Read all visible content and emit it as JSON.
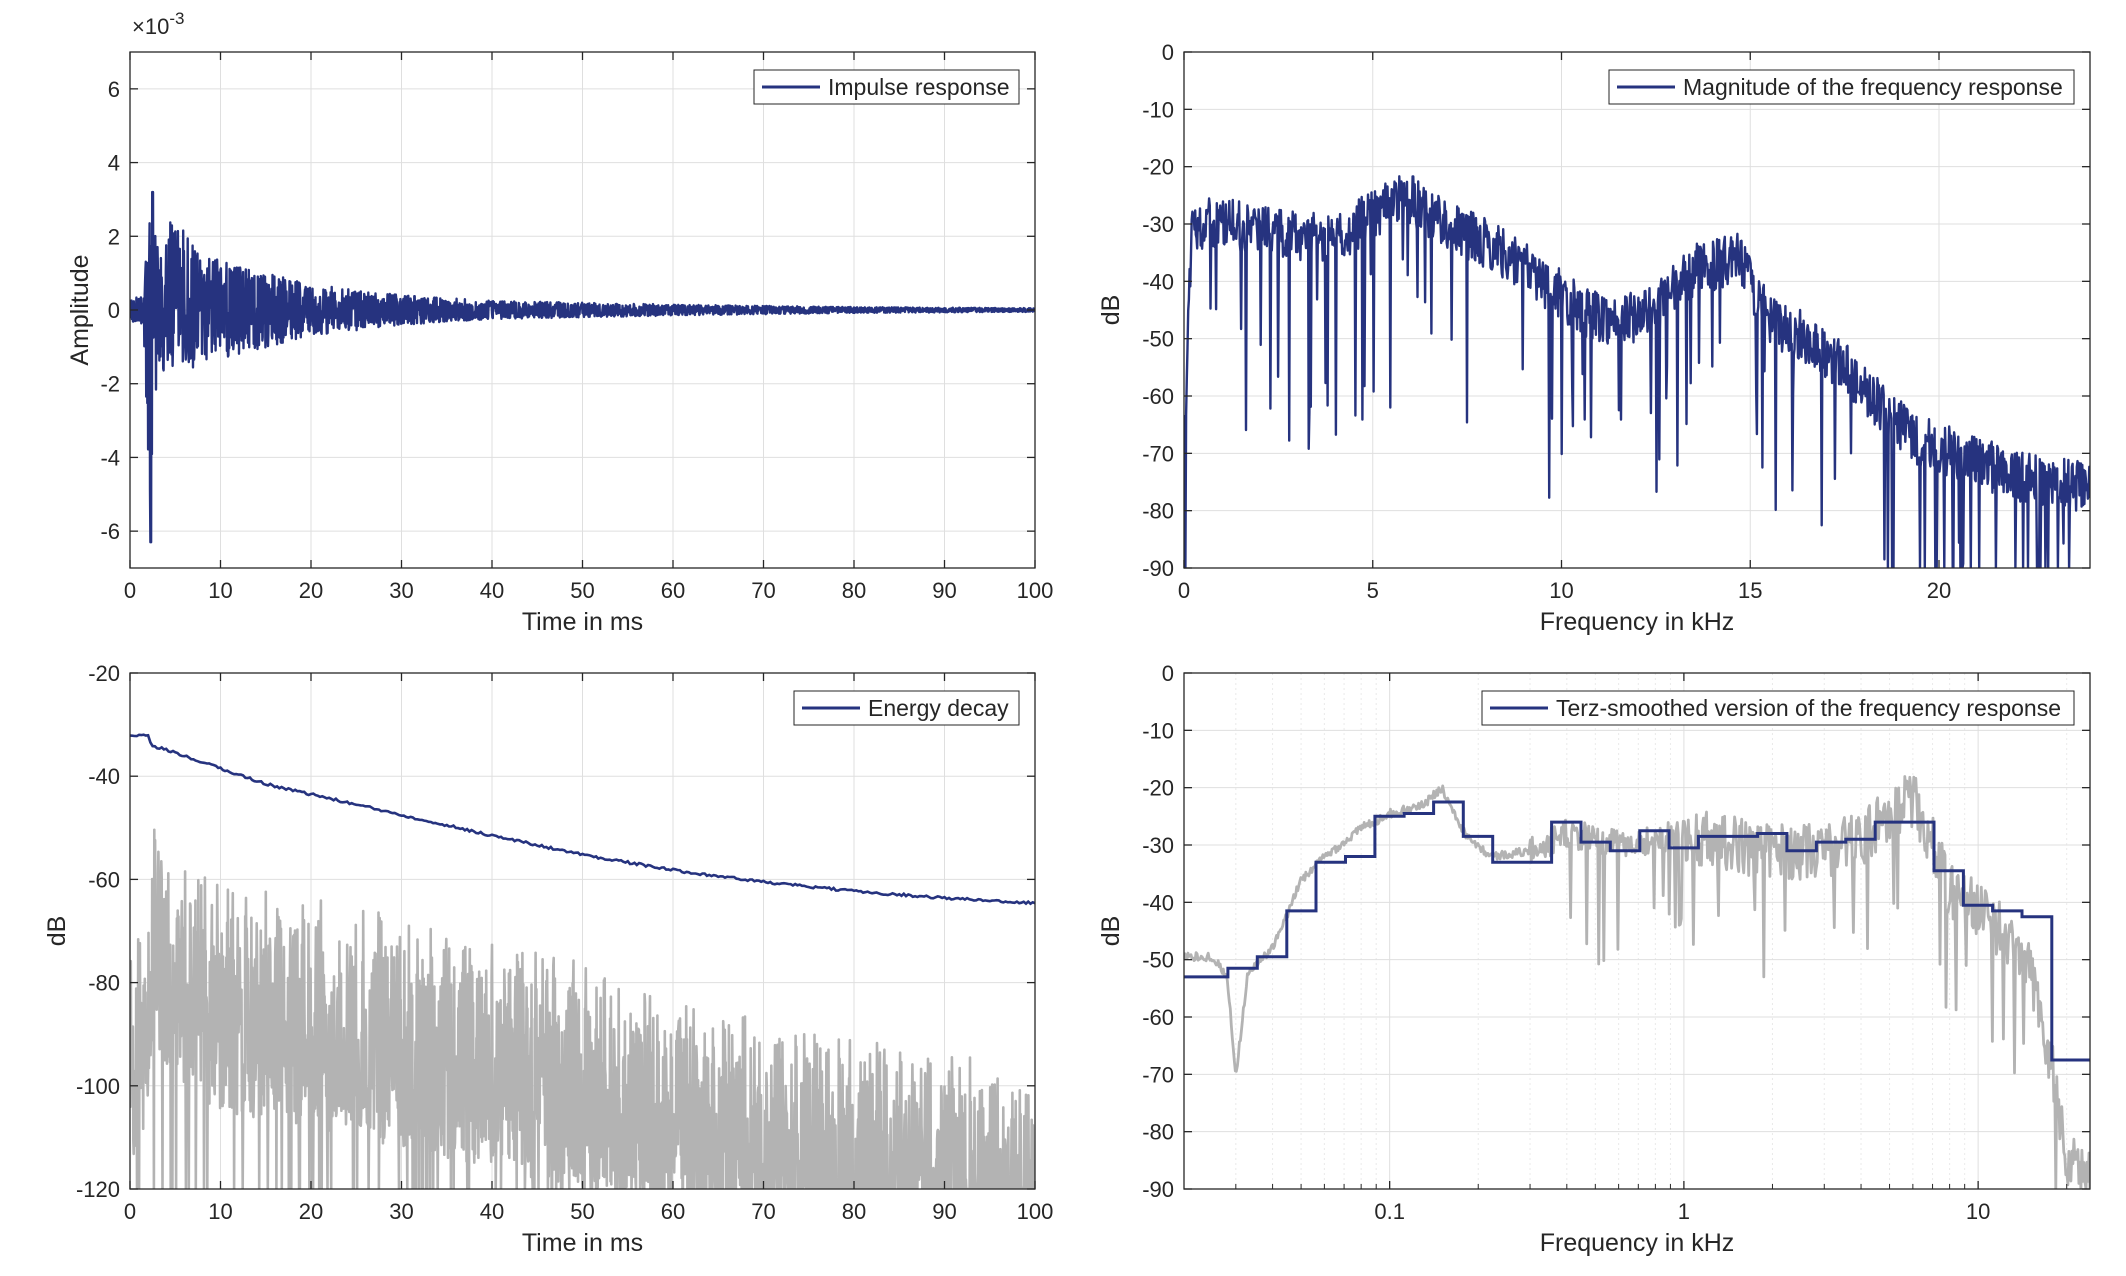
{
  "colors": {
    "series": "#26337F",
    "gray": "#B3B3B3",
    "axis": "#262626",
    "grid": "#DFDFDF",
    "minorgrid": "#EAEAEA"
  },
  "chart_data": [
    {
      "id": "impulse",
      "type": "line",
      "xlabel": "Time in ms",
      "ylabel": "Amplitude",
      "xlim": [
        0,
        100
      ],
      "ylim": [
        -7,
        7
      ],
      "xticks": [
        0,
        10,
        20,
        30,
        40,
        50,
        60,
        70,
        80,
        90,
        100
      ],
      "yticks": [
        -6,
        -4,
        -2,
        0,
        2,
        4,
        6
      ],
      "exponent_label": "×10",
      "exponent_value": "-3",
      "grid": true,
      "legend": {
        "position": "top-right",
        "entries": [
          "Impulse response"
        ]
      },
      "series": [
        {
          "name": "Impulse response",
          "color": "series",
          "envelope_t": [
            0,
            1.5,
            2.2,
            2.6,
            3.5,
            5,
            8,
            12,
            20,
            30,
            40,
            60,
            80,
            100
          ],
          "envelope_max": [
            0.3,
            0.4,
            3.2,
            2.2,
            2.0,
            2.8,
            1.5,
            1.2,
            0.7,
            0.4,
            0.25,
            0.15,
            0.08,
            0.05
          ],
          "envelope_min": [
            -0.3,
            -0.4,
            -6.3,
            -2.5,
            -1.8,
            -1.5,
            -1.6,
            -1.2,
            -0.7,
            -0.4,
            -0.25,
            -0.15,
            -0.08,
            -0.05
          ]
        }
      ]
    },
    {
      "id": "magnitude",
      "type": "line",
      "xlabel": "Frequency in kHz",
      "ylabel": "dB",
      "xlim": [
        0,
        24
      ],
      "ylim": [
        -90,
        0
      ],
      "xticks": [
        0,
        5,
        10,
        15,
        20
      ],
      "yticks": [
        0,
        -10,
        -20,
        -30,
        -40,
        -50,
        -60,
        -70,
        -80,
        -90
      ],
      "grid": true,
      "legend": {
        "position": "top-right",
        "entries": [
          "Magnitude of the frequency response"
        ]
      },
      "series": [
        {
          "name": "Magnitude of the frequency response",
          "color": "series",
          "trend_f": [
            0,
            0.2,
            1,
            2,
            3,
            4,
            5,
            5.8,
            6.5,
            7.5,
            8.5,
            9.5,
            10.5,
            11.5,
            12.5,
            13.5,
            14.7,
            15.5,
            16.5,
            17.5,
            18.5,
            19.5,
            20.5,
            22,
            24
          ],
          "trend_db": [
            -70,
            -30,
            -30,
            -31,
            -32,
            -33,
            -28,
            -25,
            -28,
            -32,
            -35,
            -40,
            -45,
            -47,
            -45,
            -38,
            -36,
            -47,
            -50,
            -55,
            -62,
            -68,
            -70,
            -74,
            -76
          ]
        }
      ]
    },
    {
      "id": "decay",
      "type": "line",
      "xlabel": "Time in ms",
      "ylabel": "dB",
      "xlim": [
        0,
        100
      ],
      "ylim": [
        -120,
        -20
      ],
      "xticks": [
        0,
        10,
        20,
        30,
        40,
        50,
        60,
        70,
        80,
        90,
        100
      ],
      "yticks": [
        -20,
        -40,
        -60,
        -80,
        -100,
        -120
      ],
      "grid": true,
      "legend": {
        "position": "top-right",
        "entries": [
          "Energy decay"
        ]
      },
      "series": [
        {
          "name": "Energy decay",
          "color": "series",
          "x": [
            0,
            2,
            2.3,
            5,
            10,
            15,
            20,
            30,
            40,
            50,
            60,
            70,
            80,
            90,
            100
          ],
          "y": [
            -32.2,
            -32.2,
            -34,
            -35.5,
            -38.5,
            -41.5,
            -43.5,
            -47.5,
            -51.5,
            -55.2,
            -58.2,
            -60.5,
            -62.3,
            -63.6,
            -64.6
          ]
        },
        {
          "color": "gray",
          "top_t": [
            0,
            1.8,
            2.5,
            5,
            10,
            20,
            30,
            40,
            50,
            60,
            70,
            80,
            90,
            100
          ],
          "top_db": [
            -70,
            -65,
            -45,
            -55,
            -60,
            -63,
            -67,
            -71,
            -75,
            -81,
            -85,
            -89,
            -93,
            -95
          ]
        }
      ]
    },
    {
      "id": "terz",
      "type": "line",
      "xlabel": "Frequency in kHz",
      "ylabel": "dB",
      "xscale": "log",
      "xlim": [
        0.02,
        24
      ],
      "ylim": [
        -90,
        0
      ],
      "xticks": [
        0.1,
        1,
        10
      ],
      "xticklabels": [
        "0.1",
        "1",
        "10"
      ],
      "yticks": [
        0,
        -10,
        -20,
        -30,
        -40,
        -50,
        -60,
        -70,
        -80,
        -90
      ],
      "grid": true,
      "legend": {
        "position": "top-right",
        "entries": [
          "Terz-smoothed version of the frequency response"
        ]
      },
      "series": [
        {
          "name": "Terz-smoothed version of the frequency response",
          "color": "series",
          "band_edges": [
            0.02,
            0.0224,
            0.0282,
            0.0355,
            0.0447,
            0.0562,
            0.0708,
            0.0891,
            0.112,
            0.141,
            0.178,
            0.224,
            0.282,
            0.355,
            0.447,
            0.562,
            0.708,
            0.891,
            1.12,
            1.41,
            1.78,
            2.24,
            2.82,
            3.55,
            4.47,
            5.62,
            7.08,
            8.91,
            11.2,
            14.1,
            17.8,
            24
          ],
          "band_db": [
            -53,
            -53,
            -51.5,
            -49.5,
            -41.5,
            -33,
            -32,
            -25,
            -24.5,
            -22.5,
            -28.5,
            -33,
            -33,
            -26,
            -29.5,
            -31,
            -27.5,
            -30.5,
            -28.5,
            -28.5,
            -28,
            -31,
            -29.5,
            -29,
            -26,
            -26,
            -34.5,
            -40.5,
            -41.5,
            -42.5,
            -67.5
          ]
        },
        {
          "color": "gray",
          "trend_f": [
            0.02,
            0.025,
            0.028,
            0.03,
            0.033,
            0.04,
            0.05,
            0.06,
            0.08,
            0.1,
            0.13,
            0.15,
            0.18,
            0.22,
            0.3,
            0.4,
            0.6,
            1,
            1.5,
            2,
            3,
            4,
            5,
            6,
            7,
            8,
            10,
            12,
            15,
            18,
            20,
            24
          ],
          "trend_db": [
            -49.5,
            -49.5,
            -53,
            -70,
            -52,
            -48,
            -36,
            -32,
            -27,
            -24.5,
            -23,
            -20,
            -28,
            -32,
            -31,
            -28,
            -30,
            -28,
            -30,
            -31,
            -31,
            -29,
            -24,
            -22,
            -30,
            -38,
            -41,
            -45,
            -52,
            -70,
            -85,
            -88
          ]
        }
      ]
    }
  ]
}
